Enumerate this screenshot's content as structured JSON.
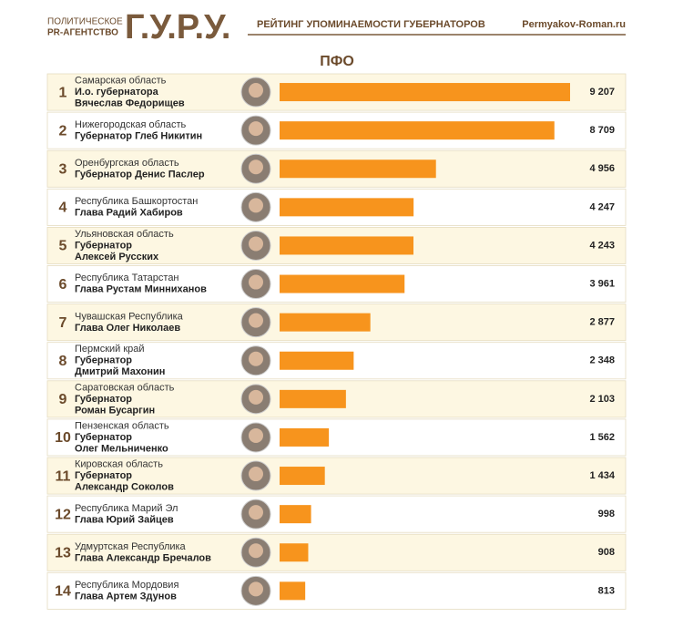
{
  "header": {
    "agency_line1": "ПОЛИТИЧЕСКОЕ",
    "agency_line2": "PR-АГЕНТСТВО",
    "logo": "Г.У.Р.У.",
    "subtitle": "РЕЙТИНГ УПОМИНАЕМОСТИ ГУБЕРНАТОРОВ",
    "site": "Permyakov-Roman.ru"
  },
  "chart_data": {
    "type": "bar",
    "title": "ПФО",
    "color": "#f7941d",
    "ranks": [
      1,
      2,
      3,
      4,
      5,
      6,
      7,
      8,
      9,
      10,
      11,
      12,
      13,
      14
    ],
    "categories": [
      "Самарская область",
      "Нижегородская область",
      "Оренбургская область",
      "Республика Башкортостан",
      "Ульяновская область",
      "Республика Татарстан",
      "Чувашская Республика",
      "Пермский край",
      "Саратовская область",
      "Пензенская область",
      "Кировская область",
      "Республика Марий Эл",
      "Удмуртская Республика",
      "Республика Мордовия"
    ],
    "names": [
      [
        "И.о. губернатора",
        "Вячеслав Федорищев"
      ],
      [
        "Губернатор Глеб Никитин"
      ],
      [
        "Губернатор Денис Паслер"
      ],
      [
        "Глава Радий Хабиров"
      ],
      [
        "Губернатор",
        "Алексей Русских"
      ],
      [
        "Глава Рустам Минниханов"
      ],
      [
        "Глава Олег Николаев"
      ],
      [
        "Губернатор",
        "Дмитрий Махонин"
      ],
      [
        "Губернатор",
        "Роман Бусаргин"
      ],
      [
        "Губернатор",
        "Олег Мельниченко"
      ],
      [
        "Губернатор",
        "Александр Соколов"
      ],
      [
        "Глава Юрий Зайцев"
      ],
      [
        "Глава Александр Бречалов"
      ],
      [
        "Глава Артем Здунов"
      ]
    ],
    "values": [
      9207,
      8709,
      4956,
      4247,
      4243,
      3961,
      2877,
      2348,
      2103,
      1562,
      1434,
      998,
      908,
      813
    ],
    "value_labels": [
      "9 207",
      "8 709",
      "4 956",
      "4 247",
      "4 243",
      "3 961",
      "2 877",
      "2 348",
      "2 103",
      "1 562",
      "1 434",
      "998",
      "908",
      "813"
    ]
  }
}
